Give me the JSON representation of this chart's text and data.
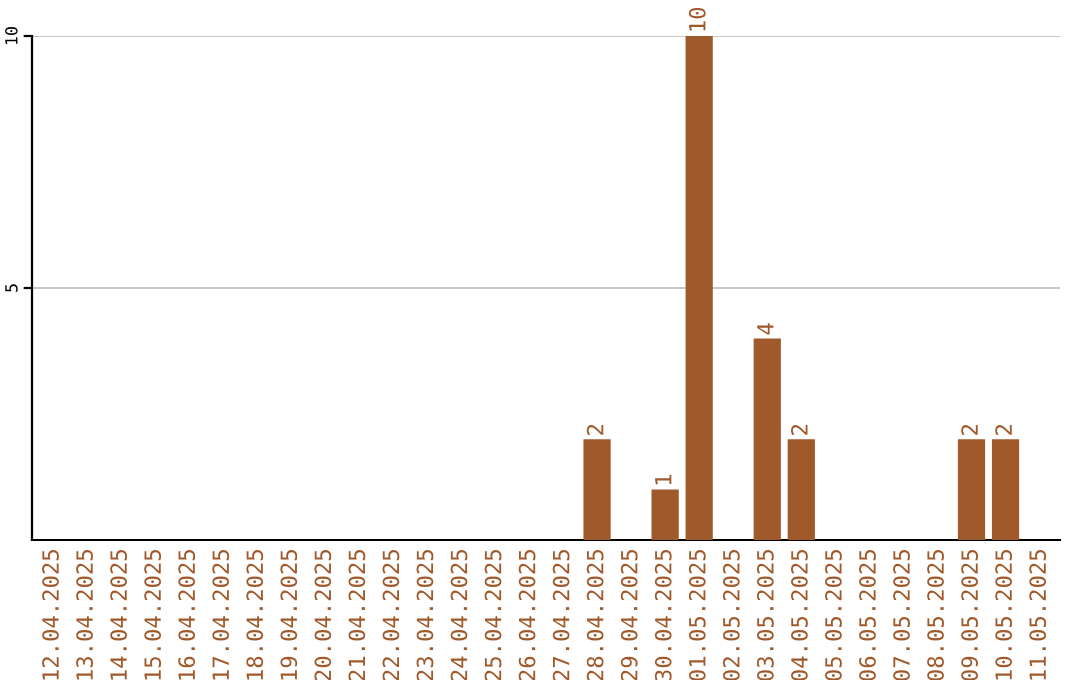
{
  "chart_data": {
    "type": "bar",
    "categories": [
      "12.04.2025",
      "13.04.2025",
      "14.04.2025",
      "15.04.2025",
      "16.04.2025",
      "17.04.2025",
      "18.04.2025",
      "19.04.2025",
      "20.04.2025",
      "21.04.2025",
      "22.04.2025",
      "23.04.2025",
      "24.04.2025",
      "25.04.2025",
      "26.04.2025",
      "27.04.2025",
      "28.04.2025",
      "29.04.2025",
      "30.04.2025",
      "01.05.2025",
      "02.05.2025",
      "03.05.2025",
      "04.05.2025",
      "05.05.2025",
      "06.05.2025",
      "07.05.2025",
      "08.05.2025",
      "09.05.2025",
      "10.05.2025",
      "11.05.2025"
    ],
    "values": [
      0,
      0,
      0,
      0,
      0,
      0,
      0,
      0,
      0,
      0,
      0,
      0,
      0,
      0,
      0,
      0,
      2,
      0,
      1,
      10,
      0,
      4,
      2,
      0,
      0,
      0,
      0,
      2,
      2,
      0
    ],
    "value_labels": [
      null,
      null,
      null,
      null,
      null,
      null,
      null,
      null,
      null,
      null,
      null,
      null,
      null,
      null,
      null,
      null,
      "2",
      null,
      "1",
      "10",
      null,
      "4",
      "2",
      null,
      null,
      null,
      null,
      "2",
      "2",
      null
    ],
    "color": "#a0592a",
    "ylim": [
      0,
      10
    ],
    "yticks": [
      5,
      10
    ],
    "grid": "y",
    "legend": false
  }
}
